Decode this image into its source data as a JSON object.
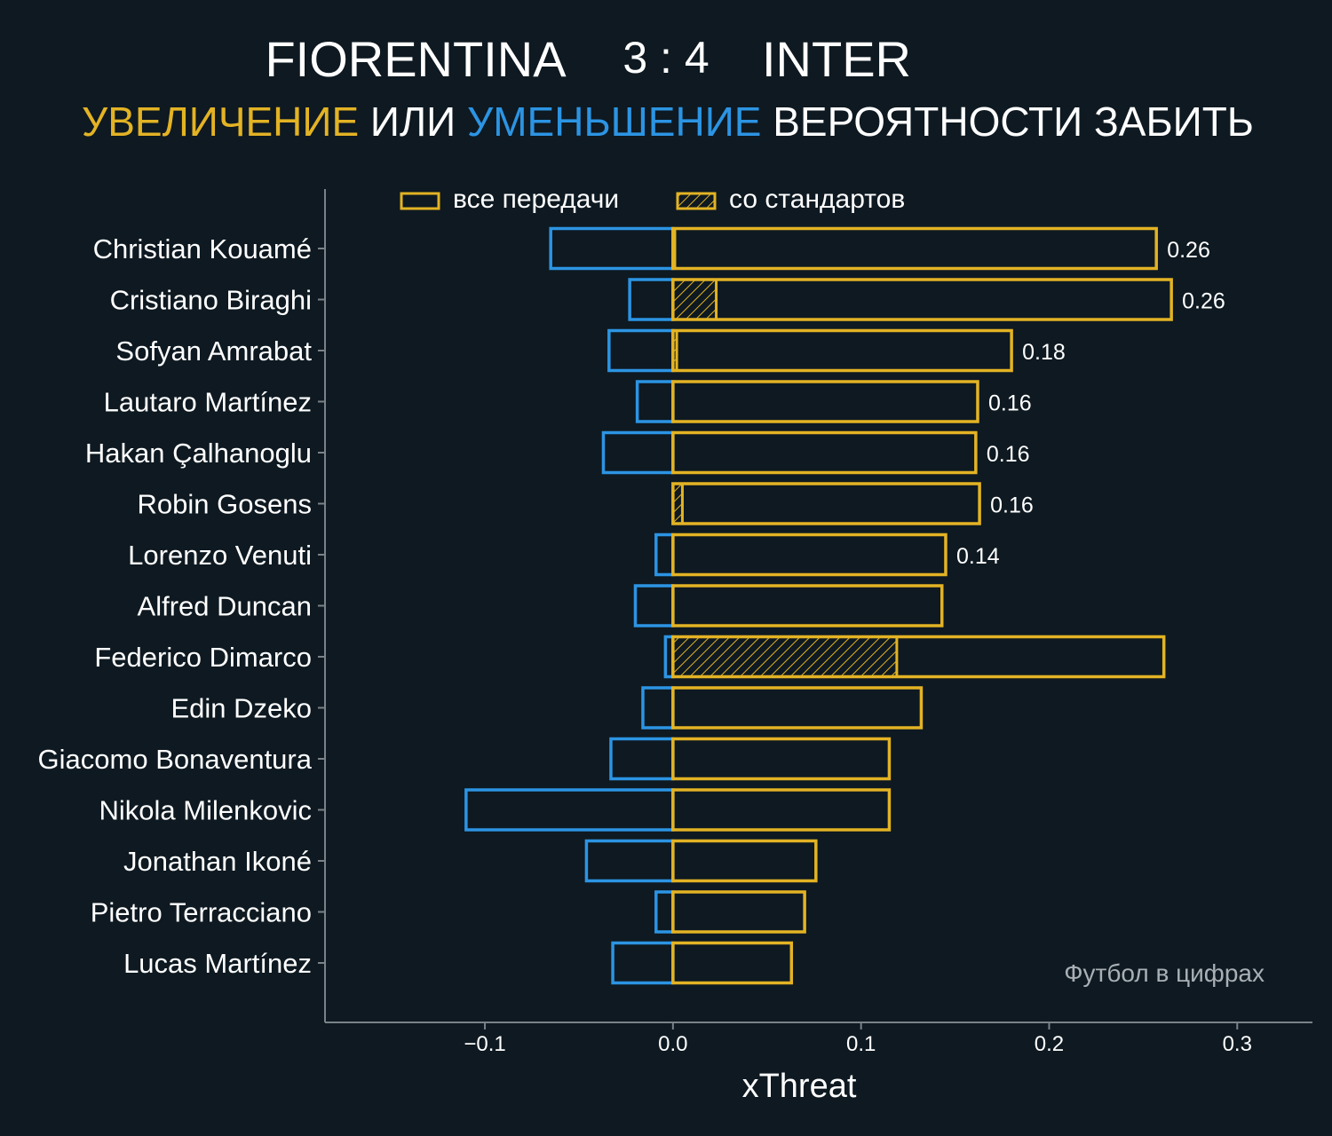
{
  "header": {
    "home_team": "FIORENTINA",
    "score": "3 : 4",
    "away_team": "INTER",
    "subtitle_parts": [
      {
        "text": "УВЕЛИЧЕНИЕ",
        "color": "#e3b324"
      },
      {
        "text": " ИЛИ ",
        "color": "#ffffff"
      },
      {
        "text": "УМЕНЬШЕНИЕ",
        "color": "#2c94e3"
      },
      {
        "text": " ВЕРОЯТНОСТИ ЗАБИТЬ",
        "color": "#ffffff"
      }
    ]
  },
  "legend": {
    "all_passes": "все передачи",
    "set_pieces": "со стандартов",
    "placement": "top"
  },
  "watermark": "Футбол в цифрах",
  "colors": {
    "background": "#0e1921",
    "increase": "#e3b324",
    "decrease": "#2c94e3",
    "axis": "#7a8288",
    "text": "#ffffff"
  },
  "chart_data": {
    "type": "bar",
    "orientation": "horizontal",
    "xlabel": "xThreat",
    "xlim": [
      -0.185,
      0.34
    ],
    "xticks": [
      -0.1,
      0.0,
      0.1,
      0.2,
      0.3
    ],
    "xtick_labels": [
      "−0.1",
      "0.0",
      "0.1",
      "0.2",
      "0.3"
    ],
    "grid": false,
    "categories": [
      "Christian Kouamé",
      "Cristiano Biraghi",
      "Sofyan Amrabat",
      "Lautaro Martínez",
      "Hakan Çalhanoglu",
      "Robin Gosens",
      "Lorenzo Venuti",
      "Alfred Duncan",
      "Federico Dimarco",
      "Edin Dzeko",
      "Giacomo Bonaventura",
      "Nikola Milenkovic",
      "Jonathan Ikoné",
      "Pietro Terracciano",
      "Lucas Martínez"
    ],
    "series": [
      {
        "name": "все передачи",
        "role": "increase",
        "values": [
          0.257,
          0.265,
          0.18,
          0.162,
          0.161,
          0.163,
          0.145,
          0.143,
          0.261,
          0.132,
          0.115,
          0.115,
          0.076,
          0.07,
          0.063
        ]
      },
      {
        "name": "",
        "role": "decrease",
        "values": [
          -0.065,
          -0.023,
          -0.034,
          -0.019,
          -0.037,
          0.0,
          -0.009,
          -0.02,
          -0.004,
          -0.016,
          -0.033,
          -0.11,
          -0.046,
          -0.009,
          -0.032
        ]
      },
      {
        "name": "со стандартов",
        "role": "set_pieces",
        "values": [
          0.001,
          0.023,
          0.002,
          0.0,
          0.0,
          0.005,
          0.0,
          0.0,
          0.119,
          0.0,
          0.0,
          0.0,
          0.0,
          0.0,
          0.0
        ]
      }
    ],
    "value_labels": [
      "0.26",
      "0.26",
      "0.18",
      "0.16",
      "0.16",
      "0.16",
      "0.14",
      "",
      "",
      "",
      "",
      "",
      "",
      "",
      ""
    ]
  }
}
